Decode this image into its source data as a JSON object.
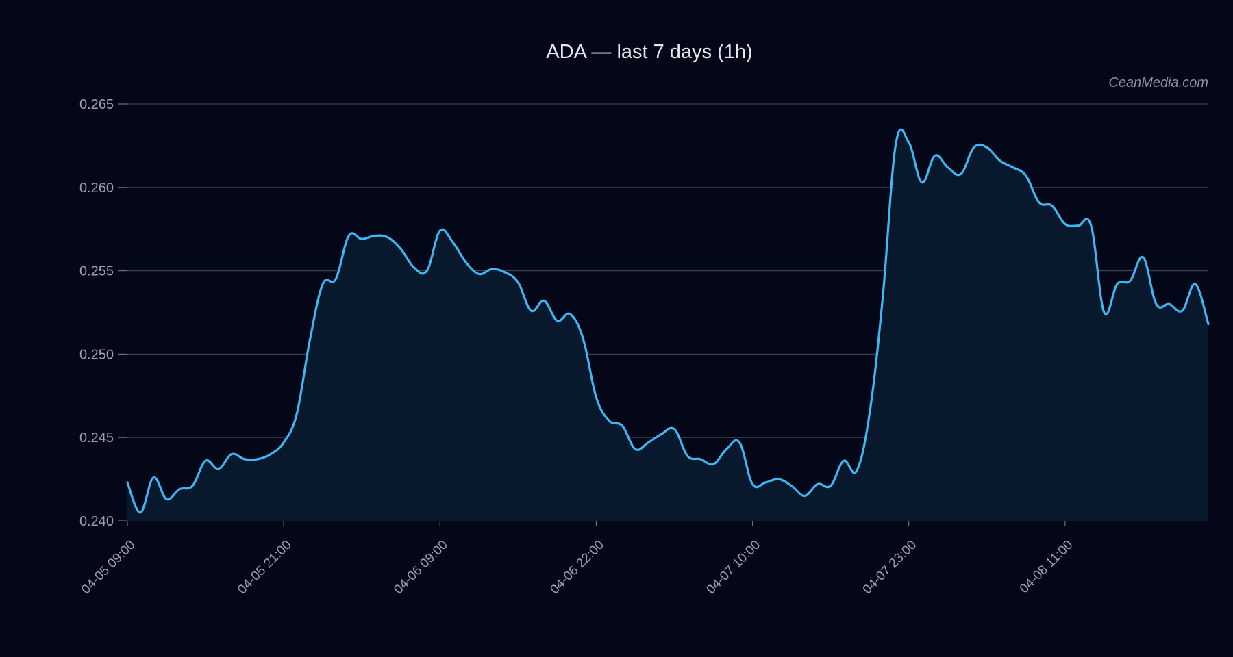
{
  "colors": {
    "background": "#030717",
    "line": "#3db8f5",
    "area_fill": "#0a1a2e",
    "grid": "#3a4252",
    "text": "#9aa1ad",
    "title": "#e6e9ef"
  },
  "watermark": "CeanMedia.com",
  "chart_data": {
    "type": "area",
    "title": "ADA — last 7 days (1h)",
    "xlabel": "",
    "ylabel": "",
    "ylim": [
      0.24,
      0.265
    ],
    "yticks": [
      "0.240",
      "0.245",
      "0.250",
      "0.255",
      "0.260",
      "0.265"
    ],
    "grid": "horizontal",
    "xtick_labels": [
      {
        "label": "04-05 09:00",
        "index": 0
      },
      {
        "label": "04-05 21:00",
        "index": 12
      },
      {
        "label": "04-06 09:00",
        "index": 24
      },
      {
        "label": "04-06 22:00",
        "index": 36
      },
      {
        "label": "04-07 10:00",
        "index": 48
      },
      {
        "label": "04-07 23:00",
        "index": 60
      },
      {
        "label": "04-08 11:00",
        "index": 72
      }
    ],
    "series": [
      {
        "values": [
          0.2423,
          0.2405,
          0.2426,
          0.2413,
          0.2419,
          0.2421,
          0.2436,
          0.2431,
          0.244,
          0.2437,
          0.2437,
          0.244,
          0.2447,
          0.2464,
          0.2508,
          0.2542,
          0.2545,
          0.2571,
          0.2569,
          0.2571,
          0.257,
          0.2563,
          0.2552,
          0.255,
          0.2574,
          0.2567,
          0.2555,
          0.2548,
          0.2551,
          0.2549,
          0.2543,
          0.2526,
          0.2532,
          0.252,
          0.2524,
          0.2509,
          0.2474,
          0.246,
          0.2457,
          0.2443,
          0.2447,
          0.2452,
          0.2455,
          0.2439,
          0.2437,
          0.2434,
          0.2443,
          0.2447,
          0.2422,
          0.2423,
          0.2425,
          0.2421,
          0.2415,
          0.2422,
          0.2421,
          0.2436,
          0.243,
          0.2465,
          0.2534,
          0.2626,
          0.2627,
          0.2603,
          0.2619,
          0.2612,
          0.2608,
          0.2624,
          0.2624,
          0.2616,
          0.2612,
          0.2607,
          0.2591,
          0.2589,
          0.2578,
          0.2577,
          0.2577,
          0.2525,
          0.2542,
          0.2544,
          0.2558,
          0.253,
          0.253,
          0.2526,
          0.2542,
          0.2518
        ]
      }
    ]
  }
}
